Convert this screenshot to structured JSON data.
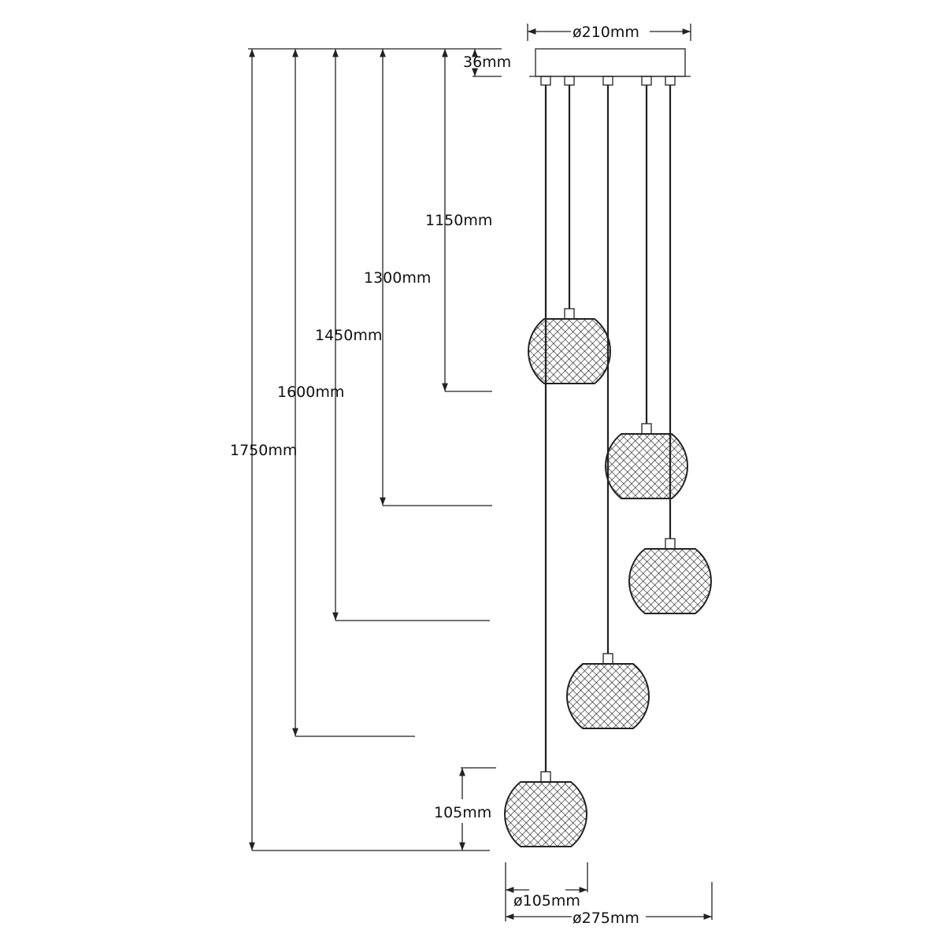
{
  "labels": {
    "canopy_diameter": "ø210mm",
    "canopy_height": "36mm",
    "drop_1": "1150mm",
    "drop_2": "1300mm",
    "drop_3": "1450mm",
    "drop_4": "1600mm",
    "drop_5": "1750mm",
    "shade_height": "105mm",
    "shade_diameter": "ø105mm",
    "overall_diameter": "ø275mm"
  },
  "colors": {
    "line": "#222222",
    "background": "#ffffff"
  }
}
